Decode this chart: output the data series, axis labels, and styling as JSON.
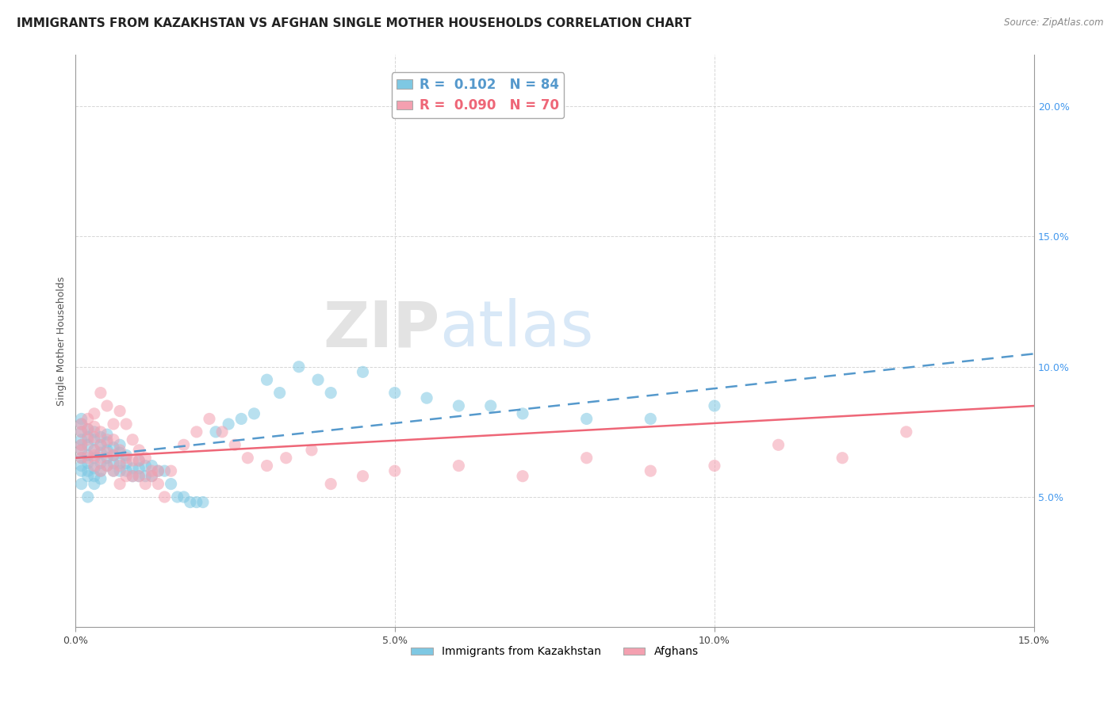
{
  "title": "IMMIGRANTS FROM KAZAKHSTAN VS AFGHAN SINGLE MOTHER HOUSEHOLDS CORRELATION CHART",
  "source_text": "Source: ZipAtlas.com",
  "ylabel": "Single Mother Households",
  "xlim": [
    0.0,
    0.15
  ],
  "ylim": [
    0.0,
    0.22
  ],
  "x_ticks": [
    0.0,
    0.05,
    0.1,
    0.15
  ],
  "x_tick_labels": [
    "0.0%",
    "5.0%",
    "10.0%",
    "15.0%"
  ],
  "y_ticks": [
    0.0,
    0.05,
    0.1,
    0.15,
    0.2
  ],
  "y_tick_labels_left": [
    "",
    "",
    "",
    "",
    ""
  ],
  "y_tick_labels_right": [
    "",
    "5.0%",
    "10.0%",
    "15.0%",
    "20.0%"
  ],
  "legend_label1": "Immigrants from Kazakhstan",
  "legend_label2": "Afghans",
  "R1": 0.102,
  "N1": 84,
  "R2": 0.09,
  "N2": 70,
  "color1": "#7ec8e3",
  "color2": "#f4a0b0",
  "trendline1_color": "#5599cc",
  "trendline2_color": "#ee6677",
  "watermark_zip": "ZIP",
  "watermark_atlas": "atlas",
  "title_fontsize": 11,
  "axis_fontsize": 9,
  "scatter1_x": [
    0.001,
    0.001,
    0.001,
    0.001,
    0.001,
    0.001,
    0.001,
    0.001,
    0.001,
    0.001,
    0.002,
    0.002,
    0.002,
    0.002,
    0.002,
    0.002,
    0.002,
    0.002,
    0.003,
    0.003,
    0.003,
    0.003,
    0.003,
    0.003,
    0.003,
    0.004,
    0.004,
    0.004,
    0.004,
    0.004,
    0.004,
    0.005,
    0.005,
    0.005,
    0.005,
    0.005,
    0.006,
    0.006,
    0.006,
    0.006,
    0.007,
    0.007,
    0.007,
    0.007,
    0.008,
    0.008,
    0.008,
    0.009,
    0.009,
    0.01,
    0.01,
    0.01,
    0.011,
    0.011,
    0.012,
    0.012,
    0.013,
    0.014,
    0.015,
    0.016,
    0.017,
    0.018,
    0.019,
    0.02,
    0.022,
    0.024,
    0.026,
    0.028,
    0.03,
    0.032,
    0.035,
    0.038,
    0.04,
    0.045,
    0.05,
    0.055,
    0.06,
    0.065,
    0.07,
    0.08,
    0.09,
    0.1
  ],
  "scatter1_y": [
    0.065,
    0.068,
    0.07,
    0.072,
    0.075,
    0.078,
    0.08,
    0.055,
    0.06,
    0.062,
    0.066,
    0.07,
    0.073,
    0.076,
    0.06,
    0.063,
    0.05,
    0.058,
    0.065,
    0.068,
    0.072,
    0.075,
    0.058,
    0.061,
    0.055,
    0.063,
    0.067,
    0.07,
    0.073,
    0.057,
    0.06,
    0.062,
    0.065,
    0.068,
    0.071,
    0.074,
    0.06,
    0.063,
    0.066,
    0.069,
    0.06,
    0.063,
    0.067,
    0.07,
    0.06,
    0.063,
    0.066,
    0.058,
    0.061,
    0.058,
    0.061,
    0.064,
    0.058,
    0.062,
    0.058,
    0.062,
    0.06,
    0.06,
    0.055,
    0.05,
    0.05,
    0.048,
    0.048,
    0.048,
    0.075,
    0.078,
    0.08,
    0.082,
    0.095,
    0.09,
    0.1,
    0.095,
    0.09,
    0.098,
    0.09,
    0.088,
    0.085,
    0.085,
    0.082,
    0.08,
    0.08,
    0.085
  ],
  "scatter2_x": [
    0.001,
    0.001,
    0.001,
    0.001,
    0.001,
    0.002,
    0.002,
    0.002,
    0.002,
    0.003,
    0.003,
    0.003,
    0.003,
    0.003,
    0.004,
    0.004,
    0.004,
    0.004,
    0.005,
    0.005,
    0.005,
    0.006,
    0.006,
    0.006,
    0.007,
    0.007,
    0.007,
    0.008,
    0.008,
    0.009,
    0.009,
    0.01,
    0.01,
    0.011,
    0.012,
    0.013,
    0.015,
    0.017,
    0.019,
    0.021,
    0.023,
    0.025,
    0.027,
    0.03,
    0.033,
    0.037,
    0.04,
    0.045,
    0.05,
    0.06,
    0.07,
    0.08,
    0.09,
    0.1,
    0.11,
    0.12,
    0.13,
    0.003,
    0.004,
    0.005,
    0.006,
    0.007,
    0.008,
    0.009,
    0.01,
    0.011,
    0.012,
    0.013,
    0.014
  ],
  "scatter2_y": [
    0.07,
    0.075,
    0.078,
    0.065,
    0.068,
    0.072,
    0.076,
    0.08,
    0.065,
    0.068,
    0.073,
    0.077,
    0.062,
    0.066,
    0.065,
    0.07,
    0.075,
    0.06,
    0.062,
    0.067,
    0.072,
    0.06,
    0.066,
    0.072,
    0.055,
    0.062,
    0.068,
    0.058,
    0.065,
    0.058,
    0.064,
    0.058,
    0.064,
    0.055,
    0.058,
    0.06,
    0.06,
    0.07,
    0.075,
    0.08,
    0.075,
    0.07,
    0.065,
    0.062,
    0.065,
    0.068,
    0.055,
    0.058,
    0.06,
    0.062,
    0.058,
    0.065,
    0.06,
    0.062,
    0.07,
    0.065,
    0.075,
    0.082,
    0.09,
    0.085,
    0.078,
    0.083,
    0.078,
    0.072,
    0.068,
    0.065,
    0.06,
    0.055,
    0.05
  ]
}
